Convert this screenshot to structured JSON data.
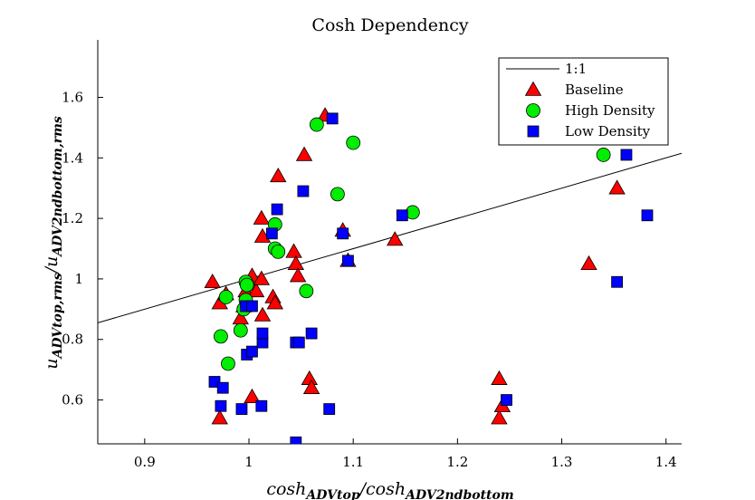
{
  "chart_data": {
    "type": "scatter",
    "title": "Cosh Dependency",
    "xlabel": {
      "parts": [
        {
          "t": "cosh",
          "sub": false
        },
        {
          "t": "ADVtop",
          "sub": true
        },
        {
          "t": "/cosh",
          "sub": false
        },
        {
          "t": "ADV2ndbottom",
          "sub": true
        }
      ]
    },
    "ylabel": {
      "parts": [
        {
          "t": "u",
          "sub": false
        },
        {
          "t": "ADVtop,rms",
          "sub": true
        },
        {
          "t": "/u",
          "sub": false
        },
        {
          "t": "ADV2ndbottom,rms",
          "sub": true
        }
      ]
    },
    "xlim": [
      0.855,
      1.415
    ],
    "ylim": [
      0.455,
      1.79
    ],
    "xticks": [
      0.9,
      1,
      1.1,
      1.2,
      1.3,
      1.4
    ],
    "xtick_labels": [
      "0.9",
      "1",
      "1.1",
      "1.2",
      "1.3",
      "1.4"
    ],
    "yticks": [
      0.6,
      0.8,
      1.0,
      1.2,
      1.4,
      1.6
    ],
    "ytick_labels": [
      "0.6",
      "0.8",
      "1",
      "1.2",
      "1.4",
      "1.6"
    ],
    "legend_position": "top-right",
    "grid": false,
    "reference_line": {
      "name": "1:1",
      "x": [
        0.855,
        1.415
      ],
      "y": [
        0.855,
        1.415
      ],
      "color": "#000000"
    },
    "series": [
      {
        "name": "Baseline",
        "marker": "triangle",
        "color": "#ff0000",
        "points": [
          [
            0.965,
            0.99
          ],
          [
            0.972,
            0.92
          ],
          [
            0.972,
            0.54
          ],
          [
            0.978,
            0.95
          ],
          [
            0.992,
            0.87
          ],
          [
            0.995,
            0.91
          ],
          [
            0.997,
            0.96
          ],
          [
            1.0,
            0.99
          ],
          [
            1.003,
            1.01
          ],
          [
            1.003,
            0.61
          ],
          [
            1.007,
            0.96
          ],
          [
            1.012,
            1.0
          ],
          [
            1.012,
            1.2
          ],
          [
            1.013,
            1.14
          ],
          [
            1.013,
            0.88
          ],
          [
            1.023,
            0.94
          ],
          [
            1.025,
            0.92
          ],
          [
            1.028,
            1.34
          ],
          [
            1.043,
            1.09
          ],
          [
            1.045,
            1.05
          ],
          [
            1.047,
            1.01
          ],
          [
            1.053,
            1.41
          ],
          [
            1.058,
            0.67
          ],
          [
            1.06,
            0.64
          ],
          [
            1.073,
            1.54
          ],
          [
            1.09,
            1.16
          ],
          [
            1.095,
            1.06
          ],
          [
            1.14,
            1.13
          ],
          [
            1.24,
            0.67
          ],
          [
            1.24,
            0.54
          ],
          [
            1.243,
            0.58
          ],
          [
            1.326,
            1.05
          ],
          [
            1.353,
            1.3
          ]
        ]
      },
      {
        "name": "High Density",
        "marker": "circle",
        "color": "#00ee00",
        "points": [
          [
            0.973,
            0.81
          ],
          [
            0.978,
            0.94
          ],
          [
            0.98,
            0.72
          ],
          [
            0.992,
            0.83
          ],
          [
            0.995,
            0.9
          ],
          [
            0.997,
            0.93
          ],
          [
            0.997,
            0.99
          ],
          [
            0.998,
            0.98
          ],
          [
            1.025,
            1.18
          ],
          [
            1.025,
            1.1
          ],
          [
            1.028,
            1.09
          ],
          [
            1.055,
            0.96
          ],
          [
            1.065,
            1.51
          ],
          [
            1.085,
            1.28
          ],
          [
            1.1,
            1.45
          ],
          [
            1.157,
            1.22
          ],
          [
            1.34,
            1.41
          ]
        ]
      },
      {
        "name": "Low Density",
        "marker": "square",
        "color": "#0000ff",
        "points": [
          [
            0.967,
            0.66
          ],
          [
            0.973,
            0.58
          ],
          [
            0.975,
            0.64
          ],
          [
            0.993,
            0.57
          ],
          [
            0.997,
            0.91
          ],
          [
            0.998,
            0.75
          ],
          [
            1.003,
            0.76
          ],
          [
            1.003,
            0.91
          ],
          [
            1.012,
            0.58
          ],
          [
            1.013,
            0.79
          ],
          [
            1.013,
            0.82
          ],
          [
            1.022,
            1.15
          ],
          [
            1.027,
            1.23
          ],
          [
            1.045,
            0.46
          ],
          [
            1.045,
            0.79
          ],
          [
            1.048,
            0.79
          ],
          [
            1.052,
            1.29
          ],
          [
            1.06,
            0.82
          ],
          [
            1.077,
            0.57
          ],
          [
            1.08,
            1.53
          ],
          [
            1.09,
            1.15
          ],
          [
            1.095,
            1.06
          ],
          [
            1.147,
            1.21
          ],
          [
            1.247,
            0.6
          ],
          [
            1.353,
            0.99
          ],
          [
            1.362,
            1.41
          ],
          [
            1.382,
            1.21
          ]
        ]
      }
    ]
  }
}
